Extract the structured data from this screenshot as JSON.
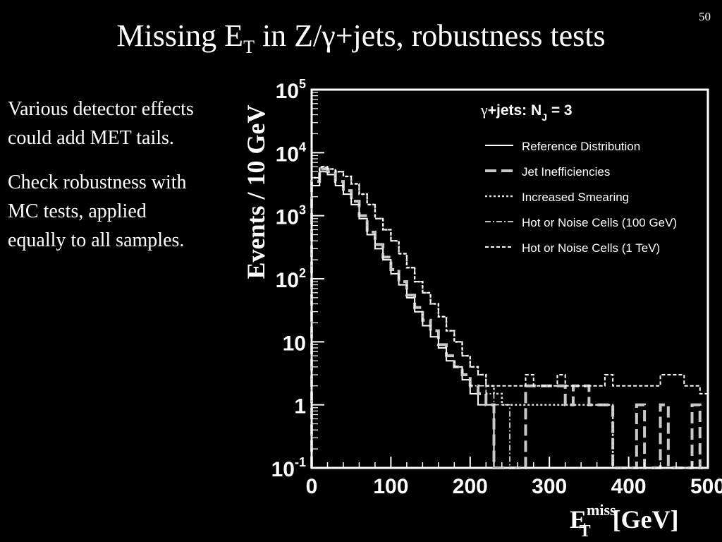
{
  "slide": {
    "number": "50",
    "title_pre": "Missing E",
    "title_sub": "T",
    "title_post": " in Z/γ+jets, robustness tests",
    "paragraphs": [
      "Various detector effects could add MET tails.",
      "Check robustness with MC tests, applied equally to all samples."
    ]
  },
  "chart_data": {
    "type": "line",
    "subtype": "step-histogram",
    "header_gamma": "γ",
    "header_main": "+jets:  N",
    "header_sub": "J",
    "header_tail": " = 3",
    "ylabel": "Events / 10 GeV",
    "xlabel_main": "E",
    "xlabel_sup": "miss",
    "xlabel_sub": "T",
    "xlabel_unit": " [GeV]",
    "xlim": [
      0,
      500
    ],
    "ylim": [
      0.1,
      100000
    ],
    "yscale": "log",
    "x_ticks": [
      "0",
      "100",
      "200",
      "300",
      "400",
      "500"
    ],
    "y_ticks": [
      {
        "base": "10",
        "exp": "5"
      },
      {
        "base": "10",
        "exp": "4"
      },
      {
        "base": "10",
        "exp": "3"
      },
      {
        "base": "10",
        "exp": "2"
      },
      {
        "base": "10",
        "exp": ""
      },
      {
        "base": "1",
        "exp": ""
      },
      {
        "base": "10",
        "exp": "-1"
      }
    ],
    "grid": false,
    "legend_position": "top-right",
    "x_bins": [
      0,
      10,
      20,
      30,
      40,
      50,
      60,
      70,
      80,
      90,
      100,
      110,
      120,
      130,
      140,
      150,
      160,
      170,
      180,
      190,
      200,
      210,
      220,
      230,
      240,
      250,
      260,
      270,
      280,
      290,
      300,
      310,
      320,
      330,
      340,
      350,
      360,
      370,
      380,
      390,
      400,
      410,
      420,
      430,
      440,
      450,
      460,
      470,
      480,
      490,
      500
    ],
    "series": [
      {
        "name": "Reference Distribution",
        "color": "#ffffff",
        "style": "solid",
        "values": [
          3000,
          5000,
          4500,
          3000,
          2200,
          1500,
          900,
          500,
          300,
          200,
          120,
          80,
          50,
          30,
          18,
          12,
          8,
          5,
          4,
          2.5,
          1.5,
          1,
          1,
          0.1,
          0.1,
          0.1,
          0.1,
          0.1,
          0.1,
          0.1,
          0.1,
          0.1,
          0.1,
          0.1,
          0.1,
          0.1,
          0.1,
          0.1,
          0.1,
          0.1,
          0.1,
          0.1,
          0.1,
          0.1,
          0.1,
          0.1,
          0.1,
          0.1,
          0.1,
          0.1
        ]
      },
      {
        "name": "Jet Inefficiencies",
        "color": "#c8c8c8",
        "style": "dashed",
        "values": [
          3500,
          5500,
          5000,
          3500,
          2500,
          1700,
          1000,
          550,
          350,
          220,
          140,
          90,
          55,
          35,
          22,
          15,
          9,
          6,
          4,
          3,
          2,
          1.5,
          1,
          0.1,
          0.1,
          0.1,
          0.1,
          2,
          2,
          2,
          2,
          2,
          1,
          2,
          2,
          1,
          1,
          1,
          0.1,
          0.1,
          0.1,
          1,
          0.1,
          0.1,
          1,
          0.1,
          0.1,
          0.1,
          1,
          0.1
        ]
      },
      {
        "name": "Increased Smearing",
        "color": "#dddddd",
        "style": "dotted",
        "values": [
          4000,
          5800,
          5500,
          5000,
          4200,
          3200,
          2200,
          1500,
          900,
          600,
          400,
          250,
          150,
          90,
          60,
          40,
          25,
          15,
          10,
          6,
          4,
          3,
          2,
          1.5,
          1,
          1,
          1,
          1,
          1,
          1,
          1,
          1,
          1,
          1,
          1,
          1,
          1,
          1,
          0.1,
          0.1,
          0.1,
          0.1,
          0.1,
          0.1,
          0.1,
          0.1,
          0.1,
          0.1,
          0.1,
          0.1
        ]
      },
      {
        "name": "Hot or Noise Cells (100 GeV)",
        "color": "#ffffff",
        "style": "dashdot",
        "values": [
          3000,
          5000,
          4500,
          3000,
          2200,
          1500,
          900,
          500,
          300,
          200,
          120,
          80,
          50,
          30,
          18,
          12,
          8,
          5,
          4,
          2.5,
          2,
          2,
          1.5,
          1,
          1,
          0.1,
          0.1,
          0.1,
          0.1,
          0.1,
          0.1,
          0.1,
          0.1,
          0.1,
          0.1,
          0.1,
          0.1,
          0.1,
          0.1,
          0.1,
          0.1,
          0.1,
          0.1,
          0.1,
          0.1,
          0.1,
          0.1,
          0.1,
          0.1,
          0.1
        ]
      },
      {
        "name": "Hot or Noise Cells (1 TeV)",
        "color": "#ffffff",
        "style": "finedash",
        "values": [
          4000,
          6000,
          5500,
          5000,
          4200,
          3200,
          2200,
          1500,
          900,
          600,
          400,
          250,
          150,
          90,
          60,
          40,
          25,
          15,
          10,
          6,
          4,
          3,
          2,
          2,
          2,
          2,
          2,
          3,
          2,
          2,
          2,
          3,
          2,
          2,
          2,
          2,
          2,
          3,
          2,
          2,
          2,
          2,
          2,
          2,
          3,
          3,
          3,
          2,
          2,
          1.5
        ]
      }
    ]
  }
}
